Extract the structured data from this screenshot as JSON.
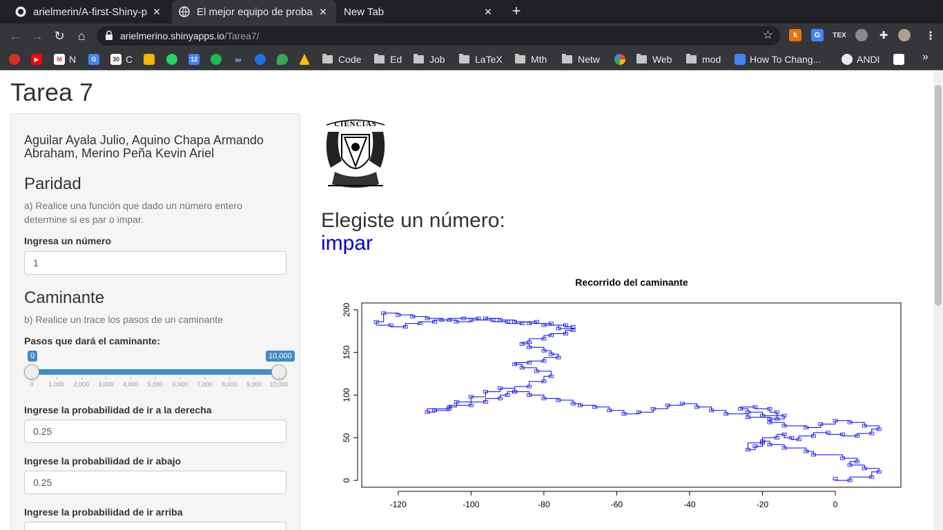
{
  "browser": {
    "tabs": [
      {
        "title": "arielmerin/A-first-Shiny-p",
        "active": false,
        "icon": "github-icon"
      },
      {
        "title": "El mejor equipo de proba",
        "active": true,
        "icon": "globe-icon"
      },
      {
        "title": "New Tab",
        "active": false,
        "icon": ""
      }
    ],
    "url_host": "arielmerino.shinyapps.io",
    "url_path": "/Tarea7/",
    "bookmarks": [
      {
        "label": "N",
        "type": "site"
      },
      {
        "label": "C",
        "type": "site"
      },
      {
        "label": "Code",
        "type": "folder"
      },
      {
        "label": "Ed",
        "type": "folder"
      },
      {
        "label": "Job",
        "type": "folder"
      },
      {
        "label": "LaTeX",
        "type": "folder"
      },
      {
        "label": "Mth",
        "type": "folder"
      },
      {
        "label": "Netw",
        "type": "folder"
      },
      {
        "label": "Web",
        "type": "folder"
      },
      {
        "label": "mod",
        "type": "folder"
      },
      {
        "label": "How To Chang...",
        "type": "site"
      },
      {
        "label": "ANDI",
        "type": "site"
      }
    ]
  },
  "app": {
    "title": "Tarea 7",
    "authors": "Aguilar Ayala Julio, Aquino Chapa Armando Abraham, Merino Peña Kevin Ariel",
    "paridad": {
      "heading": "Paridad",
      "help": "a) Realice una función que dado un número entero determine si es par o impar.",
      "label": "Ingresa un número",
      "value": "1"
    },
    "caminante": {
      "heading": "Caminante",
      "help": "b) Realice un trace los pasos de un caminante",
      "slider_label": "Pasos que dará el caminante:",
      "slider_min_label": "0",
      "slider_max_label": "10,000",
      "slider_from": 0,
      "slider_to": 10000,
      "ticks": [
        "0",
        "1,000",
        "2,000",
        "3,000",
        "4,000",
        "5,000",
        "6,000",
        "7,000",
        "8,000",
        "9,000",
        "10,000"
      ],
      "prob_right_label": "Ingrese la probabilidad de ir a la derecha",
      "prob_right_value": "0.25",
      "prob_down_label": "Ingrese la probabilidad de ir abajo",
      "prob_down_value": "0.25",
      "prob_up_label": "Ingrese la probabilidad de ir arriba"
    },
    "result": {
      "prefix": "Elegiste un número:",
      "value": "impar",
      "value_color": "#0000cd"
    },
    "logo_text": "CIENCIAS"
  },
  "chart_data": {
    "type": "line",
    "title": "Recorrido del caminante",
    "xlabel": "",
    "ylabel": "",
    "xlim": [
      -130,
      18
    ],
    "ylim": [
      -8,
      208
    ],
    "xticks": [
      -120,
      -100,
      -80,
      -60,
      -40,
      -20,
      0
    ],
    "yticks": [
      0,
      50,
      100,
      150,
      200
    ],
    "series": [
      {
        "color": "#0000ff",
        "x": [
          0,
          4,
          10,
          12,
          8,
          4,
          6,
          2,
          -6,
          -8,
          -14,
          -18,
          -20,
          -22,
          -24,
          -20,
          -16,
          -14,
          -12,
          -10,
          -6,
          -2,
          2,
          6,
          10,
          12,
          8,
          4,
          0,
          -4,
          -8,
          -14,
          -18,
          -16,
          -20,
          -24,
          -26,
          -22,
          -18,
          -16,
          -14,
          -18,
          -24,
          -30,
          -34,
          -38,
          -42,
          -46,
          -50,
          -54,
          -58,
          -62,
          -66,
          -70,
          -72,
          -76,
          -80,
          -84,
          -88,
          -92,
          -96,
          -100,
          -104,
          -106,
          -110,
          -112,
          -106,
          -100,
          -96,
          -92,
          -90,
          -88,
          -84,
          -80,
          -78,
          -82,
          -86,
          -88,
          -84,
          -80,
          -76,
          -78,
          -80,
          -84,
          -86,
          -84,
          -80,
          -78,
          -74,
          -72,
          -76,
          -80,
          -84,
          -88,
          -92,
          -96,
          -100,
          -104,
          -108,
          -112,
          -116,
          -120,
          -124,
          -126,
          -122,
          -118,
          -114,
          -110,
          -106,
          -102,
          -98,
          -94,
          -90,
          -86,
          -82,
          -78,
          -74,
          -72
        ],
        "y": [
          2,
          0,
          4,
          10,
          14,
          18,
          22,
          26,
          30,
          34,
          38,
          42,
          46,
          40,
          36,
          44,
          50,
          54,
          50,
          48,
          52,
          56,
          54,
          52,
          55,
          60,
          64,
          68,
          70,
          66,
          62,
          64,
          68,
          72,
          76,
          80,
          84,
          86,
          84,
          80,
          76,
          72,
          74,
          78,
          82,
          86,
          90,
          88,
          84,
          80,
          78,
          82,
          86,
          88,
          90,
          94,
          96,
          100,
          104,
          108,
          104,
          98,
          92,
          86,
          82,
          80,
          84,
          88,
          92,
          96,
          100,
          104,
          110,
          116,
          122,
          128,
          132,
          136,
          138,
          140,
          144,
          148,
          152,
          156,
          160,
          162,
          166,
          170,
          172,
          176,
          178,
          182,
          184,
          186,
          188,
          190,
          188,
          186,
          188,
          190,
          192,
          194,
          196,
          186,
          182,
          180,
          184,
          186,
          188,
          190,
          190,
          188,
          186,
          184,
          186,
          184,
          182,
          180
        ]
      }
    ],
    "grid": false
  }
}
